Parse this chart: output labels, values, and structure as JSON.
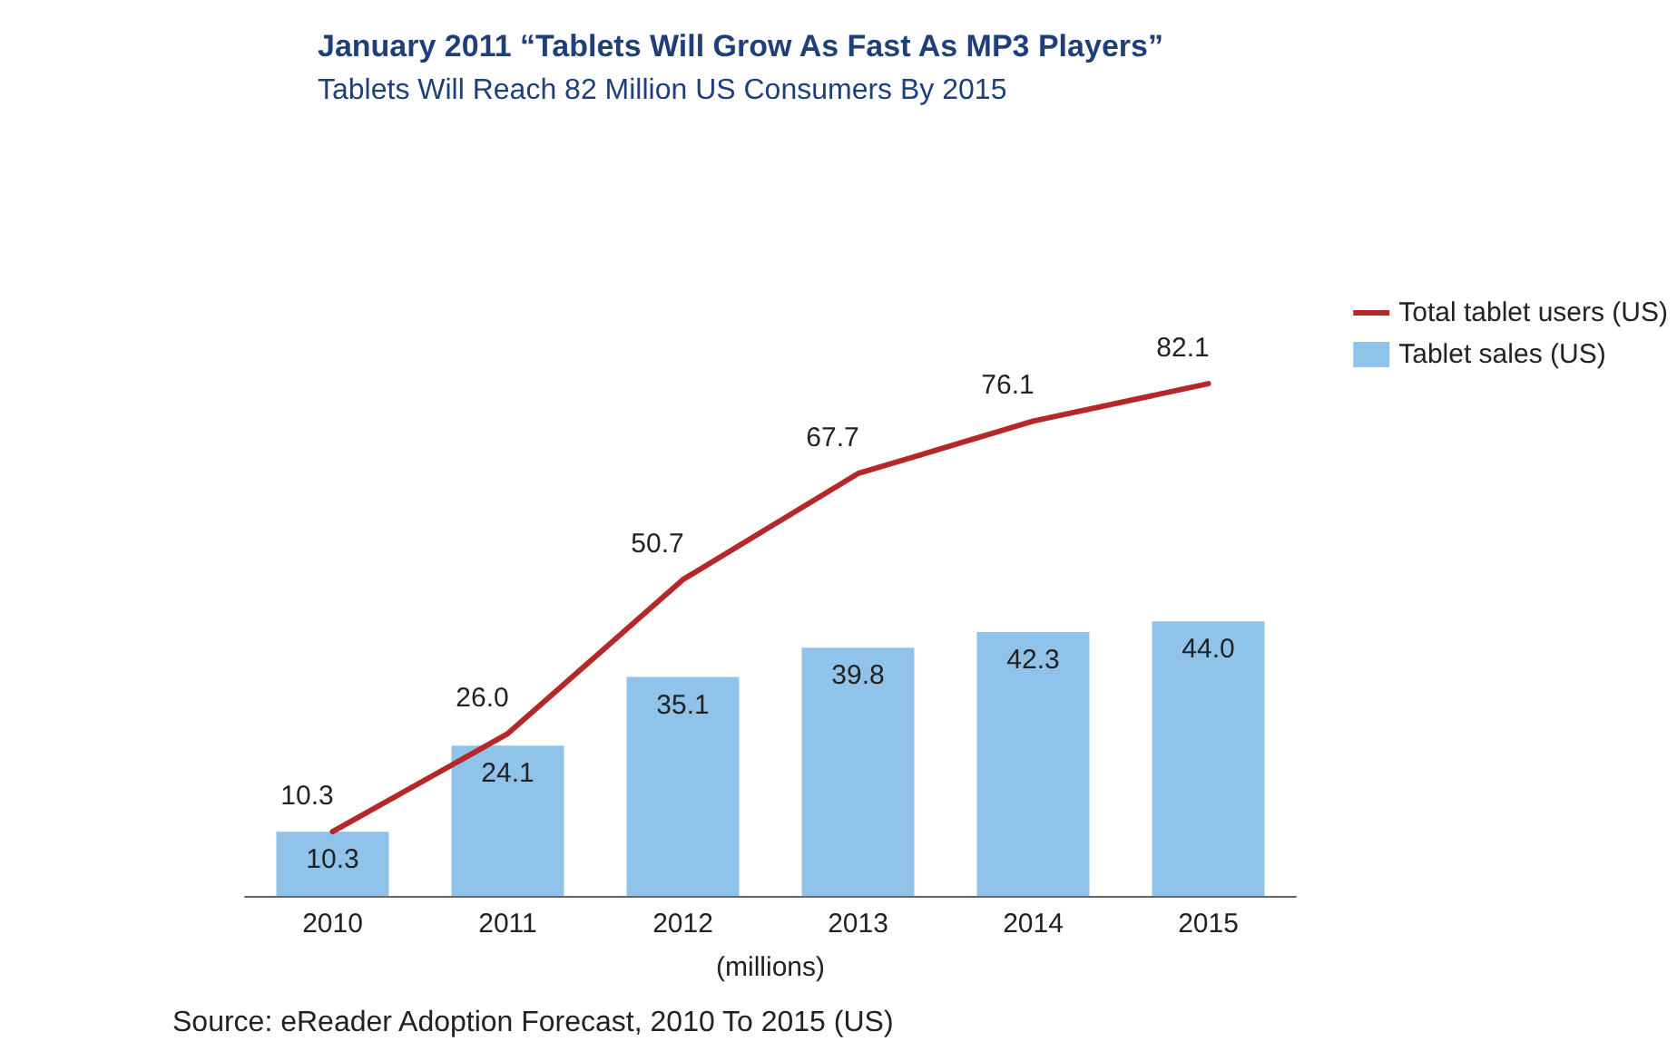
{
  "chart_data": {
    "type": "bar",
    "title": "January 2011 “Tablets Will Grow As Fast As MP3 Players”",
    "subtitle": "Tablets Will Reach 82 Million US Consumers By 2015",
    "xlabel": "(millions)",
    "annotations": [
      "Source: eReader Adoption Forecast, 2010 To 2015 (US)"
    ],
    "categories": [
      "2010",
      "2011",
      "2012",
      "2013",
      "2014",
      "2015"
    ],
    "series": [
      {
        "name": "Total tablet users (US)",
        "type": "line",
        "color": "#b5282a",
        "values": [
          10.3,
          26.0,
          50.7,
          67.7,
          76.1,
          82.1
        ],
        "value_labels": [
          "10.3",
          "26.0",
          "50.7",
          "67.7",
          "76.1",
          "82.1"
        ]
      },
      {
        "name": "Tablet sales (US)",
        "color": "#8fc3ea",
        "values": [
          10.3,
          24.1,
          35.1,
          39.8,
          42.3,
          44.0
        ],
        "value_labels": [
          "10.3",
          "24.1",
          "35.1",
          "39.8",
          "42.3",
          "44.0"
        ]
      }
    ],
    "tick_labels": "x",
    "legend": "top right",
    "marker": "none"
  }
}
